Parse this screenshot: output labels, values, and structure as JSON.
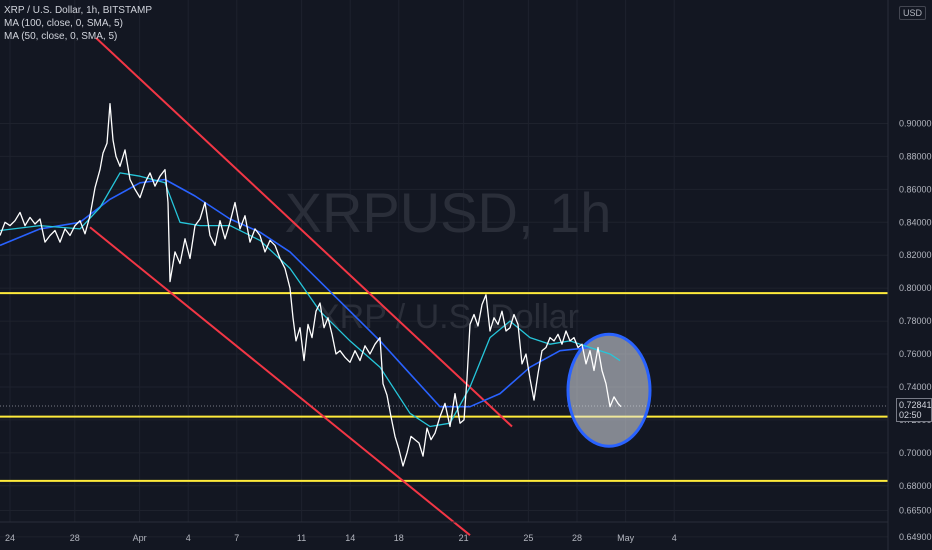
{
  "legend": {
    "line1": "XRP / U.S. Dollar, 1h, BITSTAMP",
    "line2": "MA (100, close, 0, SMA, 5)",
    "line3": "MA (50, close, 0, SMA, 5)"
  },
  "unit": "USD",
  "price_tag": {
    "value": "0.72841",
    "countdown": "02:50"
  },
  "colors": {
    "background": "#131722",
    "price": "#ffffff",
    "ma100": "#2962ff",
    "ma50": "#26c6da",
    "channel": "#f23645",
    "levels": "#ffeb3b",
    "circle_stroke": "#2962ff",
    "circle_fill": "#e0e3eb"
  },
  "chart_data": {
    "type": "line",
    "title": "XRP / U.S. Dollar, 1h, BITSTAMP",
    "watermark": {
      "symbol": "XRPUSD, 1h",
      "name": "XRP / U.S. Dollar"
    },
    "ylim": [
      0.641,
      0.975
    ],
    "y_ticks": [
      "0.90000",
      "0.88000",
      "0.86000",
      "0.84000",
      "0.82000",
      "0.80000",
      "0.78000",
      "0.76000",
      "0.74000",
      "0.72000",
      "0.70000",
      "0.68000",
      "0.66500",
      "0.64900"
    ],
    "x_ticks": [
      "24",
      "28",
      "Apr",
      "4",
      "7",
      "11",
      "14",
      "18",
      "21",
      "25",
      "28",
      "May",
      "4"
    ],
    "grid": true,
    "series": [
      {
        "name": "XRPUSD",
        "values": [
          [
            0,
            0.832
          ],
          [
            5,
            0.84
          ],
          [
            10,
            0.838
          ],
          [
            15,
            0.841
          ],
          [
            20,
            0.846
          ],
          [
            25,
            0.838
          ],
          [
            30,
            0.843
          ],
          [
            35,
            0.839
          ],
          [
            40,
            0.842
          ],
          [
            45,
            0.828
          ],
          [
            50,
            0.832
          ],
          [
            55,
            0.835
          ],
          [
            60,
            0.828
          ],
          [
            65,
            0.836
          ],
          [
            70,
            0.832
          ],
          [
            75,
            0.838
          ],
          [
            80,
            0.841
          ],
          [
            85,
            0.833
          ],
          [
            90,
            0.844
          ],
          [
            95,
            0.861
          ],
          [
            100,
            0.872
          ],
          [
            103,
            0.882
          ],
          [
            107,
            0.888
          ],
          [
            110,
            0.912
          ],
          [
            113,
            0.89
          ],
          [
            116,
            0.88
          ],
          [
            120,
            0.874
          ],
          [
            125,
            0.884
          ],
          [
            130,
            0.866
          ],
          [
            135,
            0.86
          ],
          [
            140,
            0.855
          ],
          [
            145,
            0.864
          ],
          [
            150,
            0.87
          ],
          [
            155,
            0.862
          ],
          [
            160,
            0.868
          ],
          [
            165,
            0.872
          ],
          [
            168,
            0.852
          ],
          [
            170,
            0.804
          ],
          [
            175,
            0.822
          ],
          [
            180,
            0.815
          ],
          [
            185,
            0.83
          ],
          [
            190,
            0.818
          ],
          [
            195,
            0.838
          ],
          [
            200,
            0.842
          ],
          [
            205,
            0.852
          ],
          [
            210,
            0.832
          ],
          [
            215,
            0.826
          ],
          [
            220,
            0.841
          ],
          [
            225,
            0.83
          ],
          [
            230,
            0.84
          ],
          [
            235,
            0.852
          ],
          [
            240,
            0.836
          ],
          [
            245,
            0.844
          ],
          [
            250,
            0.828
          ],
          [
            255,
            0.836
          ],
          [
            260,
            0.832
          ],
          [
            265,
            0.822
          ],
          [
            270,
            0.829
          ],
          [
            275,
            0.826
          ],
          [
            280,
            0.818
          ],
          [
            285,
            0.812
          ],
          [
            290,
            0.8
          ],
          [
            293,
            0.782
          ],
          [
            296,
            0.768
          ],
          [
            300,
            0.776
          ],
          [
            304,
            0.756
          ],
          [
            308,
            0.778
          ],
          [
            312,
            0.77
          ],
          [
            316,
            0.786
          ],
          [
            320,
            0.791
          ],
          [
            324,
            0.776
          ],
          [
            328,
            0.782
          ],
          [
            332,
            0.772
          ],
          [
            336,
            0.76
          ],
          [
            340,
            0.762
          ],
          [
            345,
            0.758
          ],
          [
            350,
            0.755
          ],
          [
            355,
            0.762
          ],
          [
            360,
            0.756
          ],
          [
            365,
            0.765
          ],
          [
            370,
            0.76
          ],
          [
            375,
            0.766
          ],
          [
            380,
            0.77
          ],
          [
            383,
            0.742
          ],
          [
            387,
            0.735
          ],
          [
            391,
            0.722
          ],
          [
            395,
            0.71
          ],
          [
            399,
            0.702
          ],
          [
            403,
            0.692
          ],
          [
            407,
            0.7
          ],
          [
            411,
            0.71
          ],
          [
            415,
            0.708
          ],
          [
            419,
            0.706
          ],
          [
            423,
            0.698
          ],
          [
            427,
            0.715
          ],
          [
            431,
            0.708
          ],
          [
            435,
            0.712
          ],
          [
            440,
            0.722
          ],
          [
            445,
            0.73
          ],
          [
            450,
            0.716
          ],
          [
            455,
            0.736
          ],
          [
            460,
            0.718
          ],
          [
            464,
            0.72
          ],
          [
            467,
            0.745
          ],
          [
            470,
            0.778
          ],
          [
            474,
            0.784
          ],
          [
            478,
            0.777
          ],
          [
            482,
            0.79
          ],
          [
            486,
            0.796
          ],
          [
            490,
            0.774
          ],
          [
            494,
            0.782
          ],
          [
            498,
            0.778
          ],
          [
            502,
            0.786
          ],
          [
            506,
            0.774
          ],
          [
            510,
            0.776
          ],
          [
            514,
            0.784
          ],
          [
            518,
            0.778
          ],
          [
            522,
            0.754
          ],
          [
            526,
            0.76
          ],
          [
            530,
            0.745
          ],
          [
            534,
            0.732
          ],
          [
            538,
            0.748
          ],
          [
            542,
            0.762
          ],
          [
            546,
            0.764
          ],
          [
            550,
            0.77
          ],
          [
            554,
            0.768
          ],
          [
            558,
            0.772
          ],
          [
            562,
            0.766
          ],
          [
            566,
            0.774
          ],
          [
            570,
            0.768
          ],
          [
            574,
            0.77
          ],
          [
            578,
            0.764
          ],
          [
            582,
            0.766
          ],
          [
            586,
            0.754
          ],
          [
            590,
            0.762
          ],
          [
            594,
            0.75
          ],
          [
            598,
            0.764
          ],
          [
            602,
            0.75
          ],
          [
            606,
            0.742
          ],
          [
            610,
            0.728
          ],
          [
            614,
            0.734
          ],
          [
            618,
            0.73
          ],
          [
            621,
            0.728
          ]
        ]
      },
      {
        "name": "MA (100, close, 0, SMA, 5)",
        "values": [
          [
            0,
            0.826
          ],
          [
            40,
            0.836
          ],
          [
            80,
            0.84
          ],
          [
            110,
            0.854
          ],
          [
            140,
            0.864
          ],
          [
            165,
            0.866
          ],
          [
            195,
            0.856
          ],
          [
            230,
            0.842
          ],
          [
            260,
            0.834
          ],
          [
            290,
            0.822
          ],
          [
            320,
            0.804
          ],
          [
            350,
            0.786
          ],
          [
            380,
            0.768
          ],
          [
            410,
            0.748
          ],
          [
            440,
            0.728
          ],
          [
            470,
            0.728
          ],
          [
            500,
            0.736
          ],
          [
            530,
            0.752
          ],
          [
            560,
            0.762
          ],
          [
            590,
            0.764
          ]
        ]
      },
      {
        "name": "MA (50, close, 0, SMA, 5)",
        "values": [
          [
            0,
            0.835
          ],
          [
            40,
            0.838
          ],
          [
            80,
            0.836
          ],
          [
            100,
            0.849
          ],
          [
            120,
            0.87
          ],
          [
            140,
            0.868
          ],
          [
            165,
            0.864
          ],
          [
            180,
            0.84
          ],
          [
            200,
            0.838
          ],
          [
            230,
            0.838
          ],
          [
            260,
            0.829
          ],
          [
            290,
            0.812
          ],
          [
            320,
            0.786
          ],
          [
            350,
            0.768
          ],
          [
            380,
            0.752
          ],
          [
            410,
            0.724
          ],
          [
            430,
            0.716
          ],
          [
            450,
            0.718
          ],
          [
            470,
            0.74
          ],
          [
            490,
            0.77
          ],
          [
            510,
            0.78
          ],
          [
            530,
            0.77
          ],
          [
            550,
            0.766
          ],
          [
            570,
            0.768
          ],
          [
            590,
            0.764
          ],
          [
            610,
            0.76
          ],
          [
            620,
            0.756
          ]
        ]
      }
    ],
    "annotations": {
      "channel_lines": [
        {
          "from": [
            96,
            0.952
          ],
          "to": [
            512,
            0.716
          ]
        },
        {
          "from": [
            90,
            0.837
          ],
          "to": [
            470,
            0.65
          ]
        }
      ],
      "horizontal_levels": [
        0.797,
        0.722,
        0.683
      ],
      "current_price_line": 0.72841,
      "ellipse": {
        "center": [
          609,
          0.738
        ],
        "rx": [
          41,
          0.034
        ]
      }
    }
  }
}
